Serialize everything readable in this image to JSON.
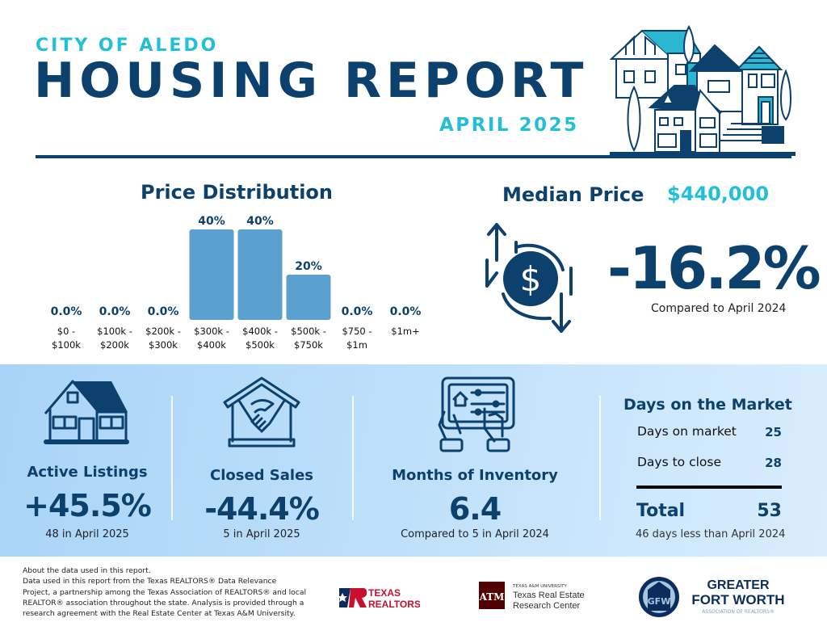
{
  "header": {
    "city": "CITY OF ALEDO",
    "title": "HOUSING REPORT",
    "month": "APRIL 2025",
    "illustration": "houses-illustration"
  },
  "price_distribution": {
    "title": "Price Distribution"
  },
  "chart_data": {
    "type": "bar",
    "title": "Price Distribution",
    "xlabel": "",
    "ylabel": "",
    "categories": [
      [
        "$0 -",
        "$100k"
      ],
      [
        "$100k -",
        "$200k"
      ],
      [
        "$200k -",
        "$300k"
      ],
      [
        "$300k -",
        "$400k"
      ],
      [
        "$400k -",
        "$500k"
      ],
      [
        "$500k -",
        "$750k"
      ],
      [
        "$750 -",
        "$1m"
      ],
      [
        "$1m+"
      ]
    ],
    "values": [
      0,
      0,
      0,
      40,
      40,
      20,
      0,
      0
    ],
    "data_labels": [
      "0.0%",
      "0.0%",
      "0.0%",
      "40%",
      "40%",
      "20%",
      "0.0%",
      "0.0%"
    ],
    "ylim": [
      0,
      40
    ],
    "grid": false,
    "bar_color": "#5ba1d0"
  },
  "median_price": {
    "label": "Median Price",
    "value": "$440,000",
    "change": "-16.2%",
    "compare": "Compared to April 2024",
    "icon": "dollar-exchange-icon"
  },
  "stats": {
    "active_listings": {
      "title": "Active Listings",
      "value": "+45.5%",
      "sub": "48 in April 2025"
    },
    "closed_sales": {
      "title": "Closed Sales",
      "value": "-44.4%",
      "sub": "5 in April 2025"
    },
    "months_inventory": {
      "title": "Months of Inventory",
      "value": "6.4",
      "sub": "Compared to 5 in April 2024"
    }
  },
  "days_on_market": {
    "title": "Days on the Market",
    "rows": [
      {
        "label": "Days on market",
        "value": "25"
      },
      {
        "label": "Days to close",
        "value": "28"
      }
    ],
    "total_label": "Total",
    "total_value": "53",
    "note": "46 days less than April 2024"
  },
  "footer": {
    "about_lines": [
      "About the data used in this report.",
      "Data used in this report from the Texas REALTORS® Data Relevance",
      "Project, a partnership among the Texas Association of REALTORS® and local",
      "REALTOR® association throughout the state. Analysis is provided through a",
      "research agreement with the Real Estate Center at Texas A&M University."
    ],
    "logos": {
      "texas_realtors": [
        "TEXAS",
        "REALTORS"
      ],
      "tamu_small": "TEXAS A&M UNIVERSITY",
      "tamu_line1": "Texas Real Estate",
      "tamu_line2": "Research Center",
      "gfw_line1": "GREATER",
      "gfw_line2": "FORT WORTH",
      "gfw_line3": "ASSOCIATION OF REALTORS®"
    }
  },
  "colors": {
    "navy": "#0b416c",
    "cyan": "#22c0d8",
    "bar": "#5ba1d0",
    "band_start": "#a9d4f7",
    "band_end": "#d9edfd",
    "tamu_maroon": "#500000",
    "texas_red": "#c8102e"
  }
}
